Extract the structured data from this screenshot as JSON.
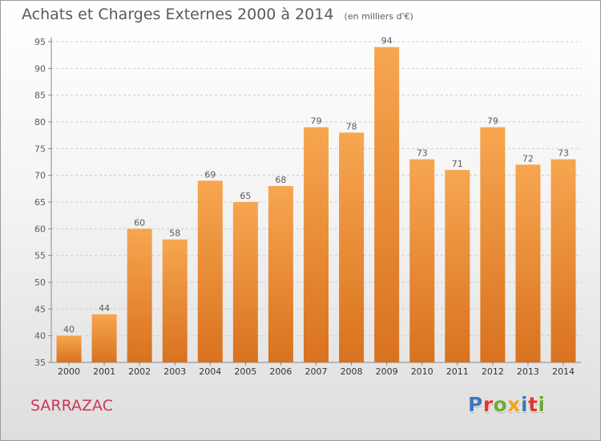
{
  "title": "Achats et Charges Externes 2000 à 2014",
  "unit_note": "(en milliers d'€)",
  "commune": "SARRAZAC",
  "logo_text": "Proxiti",
  "logo_colors": [
    "#3b78c0",
    "#e8332a",
    "#6cab35",
    "#f2a322",
    "#3b78c0",
    "#e8332a",
    "#6cab35"
  ],
  "colors": {
    "bar_light": "#f7a650",
    "bar_dark": "#d9721f",
    "commune": "#c8385a",
    "text": "#5a5a5a",
    "grid": "#cccccc"
  },
  "chart_data": {
    "type": "bar",
    "title": "Achats et Charges Externes 2000 à 2014",
    "categories": [
      "2000",
      "2001",
      "2002",
      "2003",
      "2004",
      "2005",
      "2006",
      "2007",
      "2008",
      "2009",
      "2010",
      "2011",
      "2012",
      "2013",
      "2014"
    ],
    "values": [
      40,
      44,
      60,
      58,
      69,
      65,
      68,
      79,
      78,
      94,
      73,
      71,
      79,
      72,
      73
    ],
    "ylim": [
      35,
      95
    ],
    "yticks": [
      35,
      40,
      45,
      50,
      55,
      60,
      65,
      70,
      75,
      80,
      85,
      90,
      95
    ],
    "grid": "horizontal dashed",
    "xlabel": "",
    "ylabel": ""
  }
}
